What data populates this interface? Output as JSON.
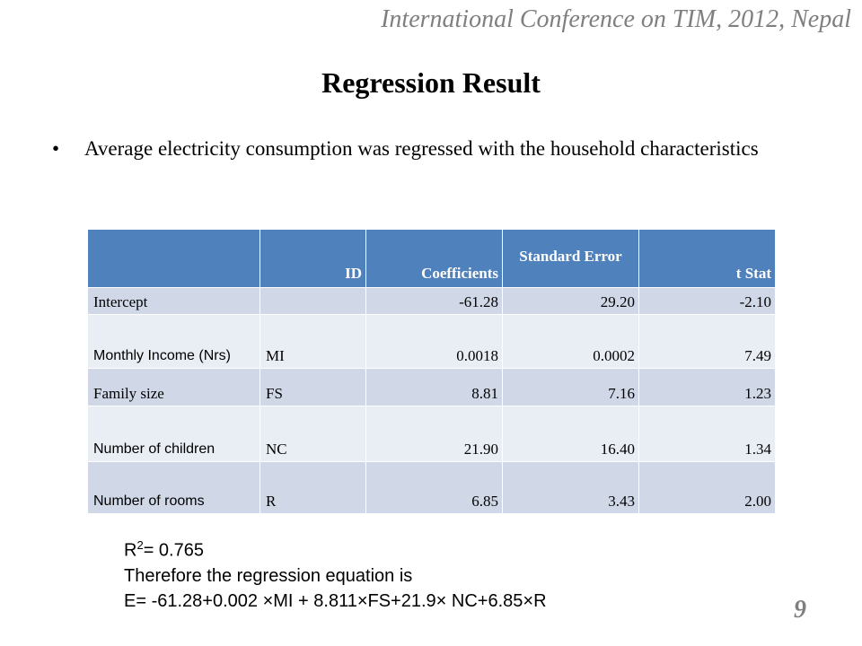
{
  "header": {
    "conference": "International Conference on TIM, 2012, Nepal"
  },
  "title": "Regression Result",
  "bullet": {
    "marker": "•",
    "text": "Average electricity consumption was regressed with the household characteristics"
  },
  "table": {
    "headers": [
      "",
      "ID",
      "Coefficients",
      "Standard Error",
      "t Stat"
    ],
    "rows": [
      {
        "label": "Intercept",
        "id": "",
        "coef": "-61.28",
        "se": "29.20",
        "t": "-2.10"
      },
      {
        "label": "Monthly Income (Nrs)",
        "id": "MI",
        "coef": "0.0018",
        "se": "0.0002",
        "t": "7.49"
      },
      {
        "label": "Family size",
        "id": "FS",
        "coef": "8.81",
        "se": "7.16",
        "t": "1.23"
      },
      {
        "label": "Number of children",
        "id": "NC",
        "coef": "21.90",
        "se": "16.40",
        "t": "1.34"
      },
      {
        "label": "Number of rooms",
        "id": "R",
        "coef": "6.85",
        "se": "3.43",
        "t": "2.00"
      }
    ]
  },
  "stats": {
    "r_label": "R",
    "r_sup": "2",
    "r_value": "= 0.765",
    "line2": "Therefore the regression equation is",
    "equation": "E= -61.28+0.002 ×MI + 8.811×FS+21.9× NC+6.85×R"
  },
  "page_number": "9"
}
